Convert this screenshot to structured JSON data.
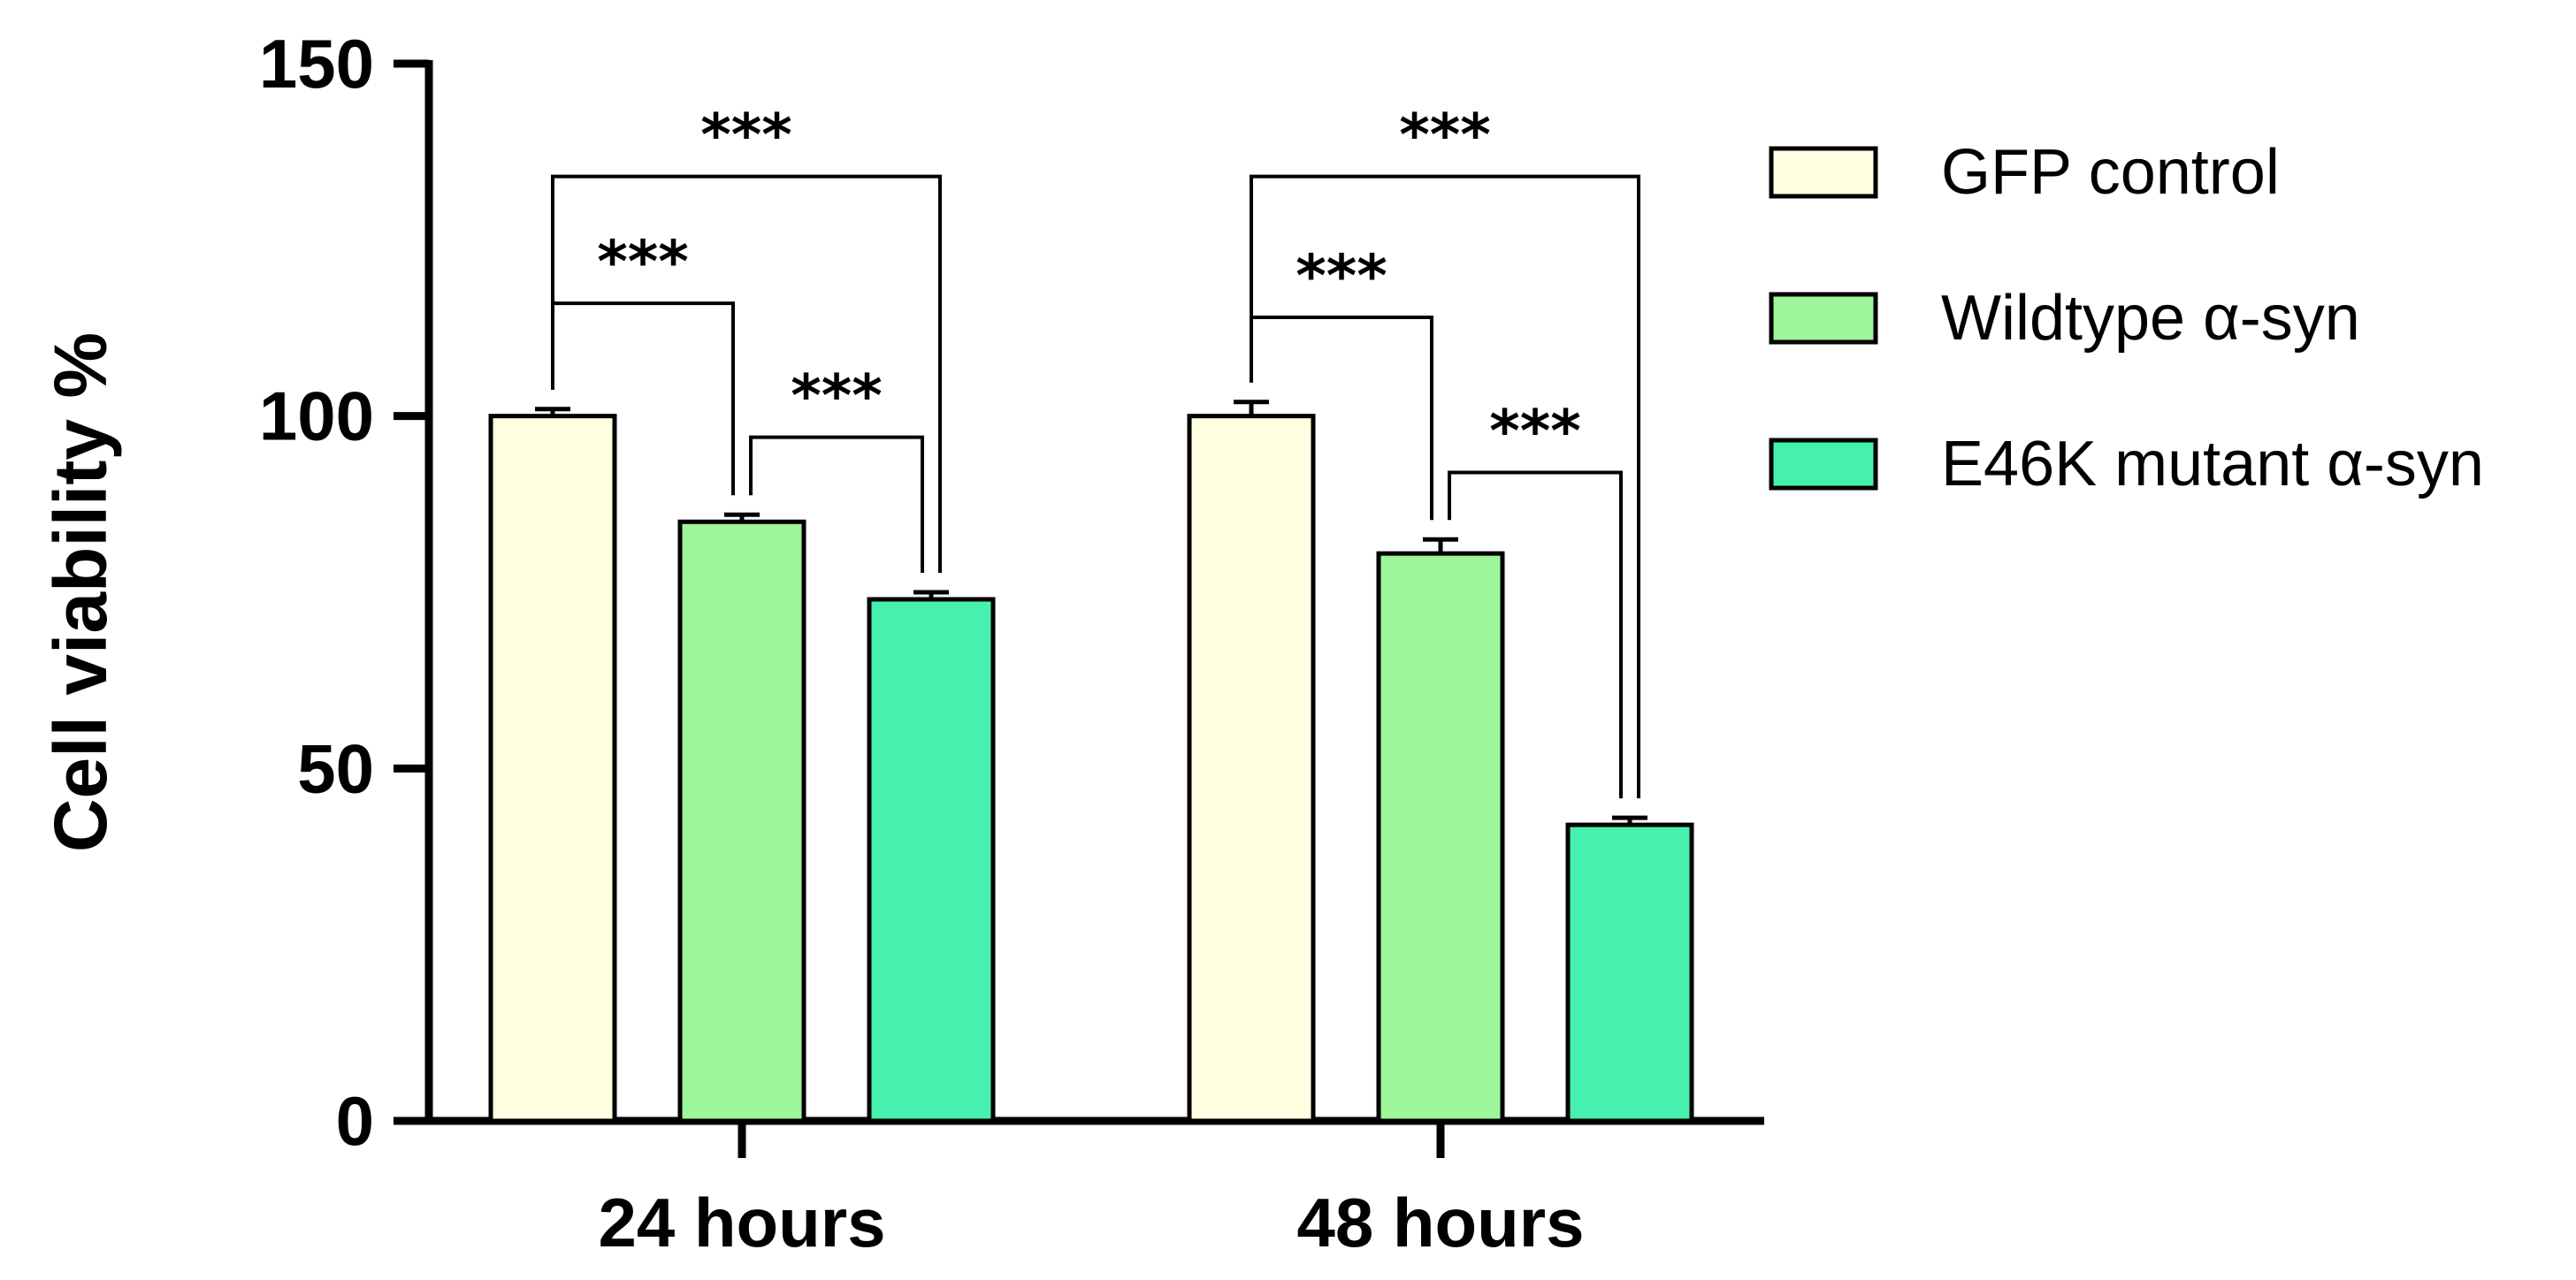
{
  "chart_data": {
    "type": "bar",
    "title": "",
    "xlabel": "",
    "ylabel": "Cell viability %",
    "ylim": [
      0,
      150
    ],
    "yticks": [
      "0",
      "50",
      "100",
      "150"
    ],
    "categories": [
      "24 hours",
      "48 hours"
    ],
    "series": [
      {
        "name": "GFP control",
        "values": [
          100,
          100
        ],
        "errors": [
          1,
          2
        ],
        "color": "#FFFEE0"
      },
      {
        "name": "Wildtype α-syn",
        "values": [
          85,
          80.5
        ],
        "errors": [
          1,
          2
        ],
        "color": "#9EF59A"
      },
      {
        "name": "E46K mutant α-syn",
        "values": [
          74,
          42
        ],
        "errors": [
          1,
          1
        ],
        "color": "#46F0AE"
      }
    ],
    "significance": [
      {
        "category": "24 hours",
        "from": "GFP control",
        "to": "Wildtype α-syn",
        "label": "***",
        "level": 116
      },
      {
        "category": "24 hours",
        "from": "Wildtype α-syn",
        "to": "E46K mutant α-syn",
        "label": "***",
        "level": 97
      },
      {
        "category": "24 hours",
        "from": "GFP control",
        "to": "E46K mutant α-syn",
        "label": "***",
        "level": 134
      },
      {
        "category": "48 hours",
        "from": "GFP control",
        "to": "Wildtype α-syn",
        "label": "***",
        "level": 114
      },
      {
        "category": "48 hours",
        "from": "Wildtype α-syn",
        "to": "E46K mutant α-syn",
        "label": "***",
        "level": 92
      },
      {
        "category": "48 hours",
        "from": "GFP control",
        "to": "E46K mutant α-syn",
        "label": "***",
        "level": 134
      }
    ],
    "legend": "right",
    "grid": false
  }
}
